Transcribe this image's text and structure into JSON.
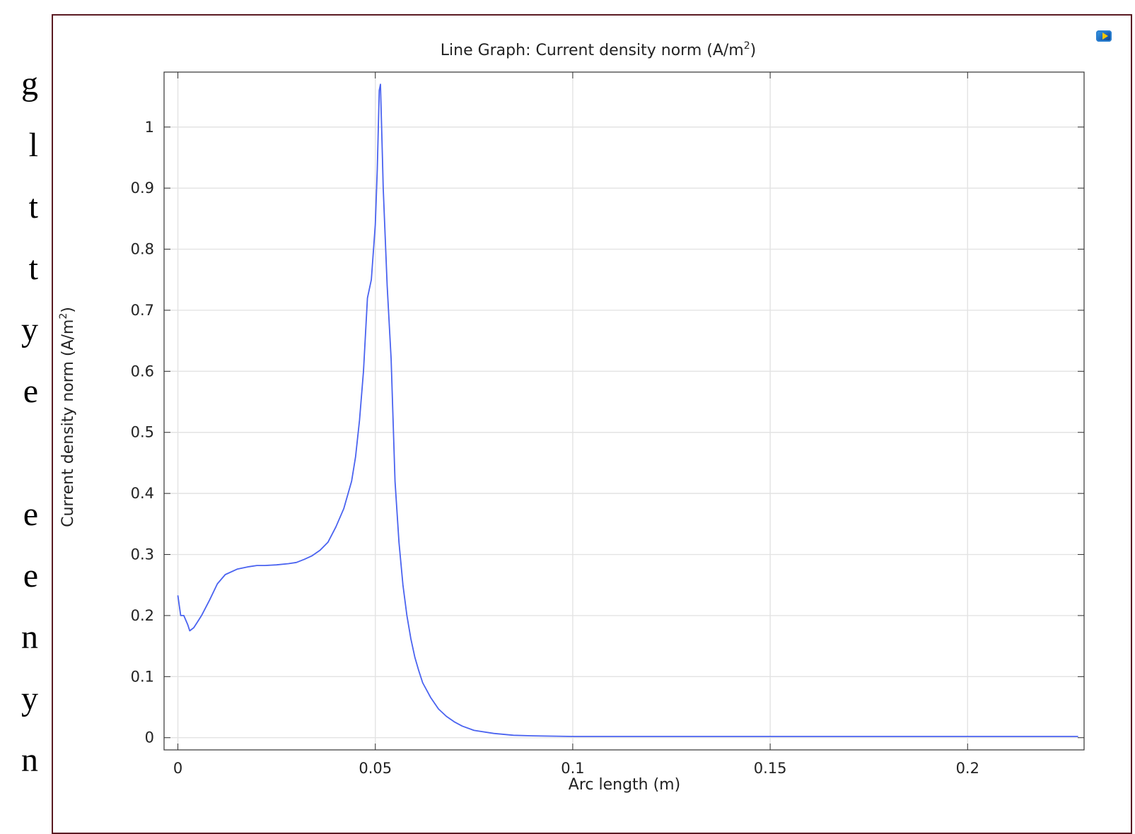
{
  "page": {
    "side_letters": [
      "g",
      "l",
      "t",
      "t",
      "y",
      "e",
      "",
      "e",
      "e",
      "n",
      "y",
      "n"
    ]
  },
  "chart_data": {
    "type": "line",
    "title": "Line Graph: Current density norm (A/m²)",
    "title_text": "Line Graph: Current density norm (A/m",
    "title_sup": "2",
    "title_end": ")",
    "xlabel": "Arc length (m)",
    "ylabel_text": "Current density norm (A/m",
    "ylabel_sup": "2",
    "ylabel_end": ")",
    "xlim": [
      -0.0035,
      0.2295
    ],
    "ylim": [
      -0.02,
      1.09
    ],
    "xticks": [
      0,
      0.05,
      0.1,
      0.15,
      0.2
    ],
    "xtick_labels": [
      "0",
      "0.05",
      "0.1",
      "0.15",
      "0.2"
    ],
    "yticks": [
      0,
      0.1,
      0.2,
      0.3,
      0.4,
      0.5,
      0.6,
      0.7,
      0.8,
      0.9,
      1
    ],
    "ytick_labels": [
      "0",
      "0.1",
      "0.2",
      "0.3",
      "0.4",
      "0.5",
      "0.6",
      "0.7",
      "0.8",
      "0.9",
      "1"
    ],
    "grid": true,
    "line_color": "#4a63f0",
    "series": [
      {
        "x": [
          0,
          0.0007,
          0.0015,
          0.0025,
          0.003,
          0.004,
          0.005,
          0.006,
          0.008,
          0.01,
          0.012,
          0.015,
          0.018,
          0.02,
          0.022,
          0.025,
          0.028,
          0.03,
          0.032,
          0.034,
          0.036,
          0.038,
          0.04,
          0.042,
          0.044,
          0.045,
          0.046,
          0.047,
          0.048,
          0.049,
          0.05,
          0.0505,
          0.051,
          0.0513,
          0.0518,
          0.052,
          0.0525,
          0.053,
          0.054,
          0.055,
          0.056,
          0.057,
          0.058,
          0.059,
          0.06,
          0.061,
          0.062,
          0.064,
          0.066,
          0.068,
          0.07,
          0.072,
          0.075,
          0.08,
          0.085,
          0.09,
          0.1,
          0.12,
          0.15,
          0.2,
          0.228
        ],
        "y": [
          0.233,
          0.2,
          0.2,
          0.185,
          0.175,
          0.18,
          0.19,
          0.2,
          0.225,
          0.252,
          0.267,
          0.276,
          0.28,
          0.282,
          0.282,
          0.283,
          0.285,
          0.287,
          0.292,
          0.298,
          0.307,
          0.32,
          0.345,
          0.375,
          0.42,
          0.46,
          0.52,
          0.6,
          0.72,
          0.75,
          0.84,
          0.93,
          1.06,
          1.07,
          0.95,
          0.9,
          0.82,
          0.74,
          0.62,
          0.42,
          0.32,
          0.25,
          0.2,
          0.162,
          0.132,
          0.11,
          0.09,
          0.066,
          0.047,
          0.035,
          0.026,
          0.019,
          0.012,
          0.007,
          0.004,
          0.003,
          0.002,
          0.002,
          0.002,
          0.002,
          0.002
        ]
      }
    ]
  }
}
